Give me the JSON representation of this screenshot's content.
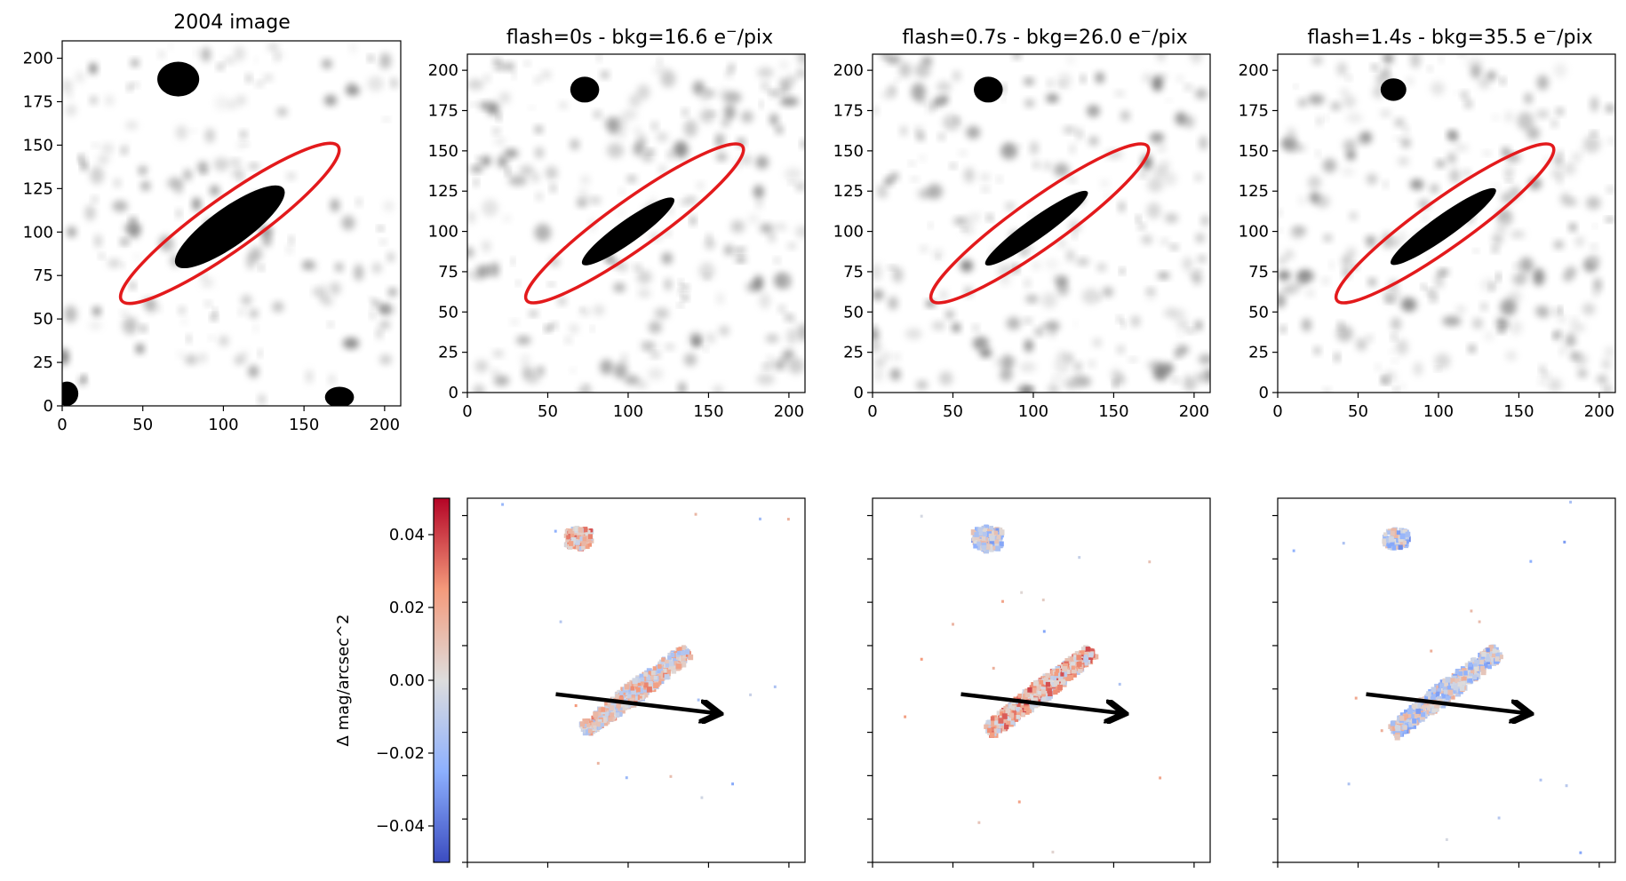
{
  "figure": {
    "accent_ellipse": "#e31a1c",
    "arrow_color": "#000000"
  },
  "chart_data": [
    {
      "type": "heatmap",
      "panel": "top-1",
      "title": "2004 image",
      "colormap": "gray_r",
      "xlim": [
        0,
        210
      ],
      "ylim": [
        0,
        210
      ],
      "xticks": [
        0,
        50,
        100,
        150,
        200
      ],
      "yticks": [
        0,
        25,
        50,
        75,
        100,
        125,
        150,
        175,
        200
      ],
      "xtick_labels": [
        "0",
        "50",
        "100",
        "150",
        "200"
      ],
      "ytick_labels": [
        "0",
        "25",
        "50",
        "75",
        "100",
        "125",
        "150",
        "175",
        "200"
      ],
      "overlay": {
        "shape": "ellipse",
        "center": [
          104,
          105
        ],
        "width": 165,
        "height": 30,
        "angle_deg": 35.5,
        "color": "red"
      },
      "sources": [
        {
          "name": "galaxy",
          "center": [
            104,
            103
          ],
          "length": 82,
          "width": 22,
          "angle_deg": 35.5,
          "level": 1.0
        },
        {
          "name": "star-top",
          "center": [
            72,
            188
          ],
          "length": 26,
          "width": 20,
          "angle_deg": 0,
          "level": 1.0
        },
        {
          "name": "corner-bottom-left",
          "center": [
            3,
            7
          ],
          "length": 14,
          "width": 14,
          "angle_deg": 0,
          "level": 1.0
        },
        {
          "name": "corner-bottom-right",
          "center": [
            172,
            5
          ],
          "length": 18,
          "width": 12,
          "angle_deg": 0,
          "level": 1.0
        }
      ]
    },
    {
      "type": "heatmap",
      "panel": "top-2",
      "title": "flash=0s - bkg=16.6 e$^-$/pix",
      "title_parts": {
        "pre": "flash=0s - bkg=16.6 e",
        "sup": "−",
        "post": "/pix"
      },
      "flash_s": 0,
      "bkg_e_per_pix": 16.6,
      "colormap": "gray_r",
      "xlim": [
        0,
        210
      ],
      "ylim": [
        0,
        210
      ],
      "xticks": [
        0,
        50,
        100,
        150,
        200
      ],
      "yticks": [
        0,
        25,
        50,
        75,
        100,
        125,
        150,
        175,
        200
      ],
      "xtick_labels": [
        "0",
        "50",
        "100",
        "150",
        "200"
      ],
      "ytick_labels": [
        "0",
        "25",
        "50",
        "75",
        "100",
        "125",
        "150",
        "175",
        "200"
      ],
      "overlay": {
        "shape": "ellipse",
        "center": [
          104,
          105
        ],
        "width": 165,
        "height": 30,
        "angle_deg": 35.5,
        "color": "red"
      },
      "sources": [
        {
          "name": "galaxy",
          "center": [
            100,
            100
          ],
          "length": 70,
          "width": 14,
          "angle_deg": 35.5,
          "level": 1.0
        },
        {
          "name": "star-top",
          "center": [
            73,
            188
          ],
          "length": 18,
          "width": 16,
          "angle_deg": 0,
          "level": 1.0
        }
      ]
    },
    {
      "type": "heatmap",
      "panel": "top-3",
      "title": "flash=0.7s - bkg=26.0 e$^-$/pix",
      "title_parts": {
        "pre": "flash=0.7s - bkg=26.0 e",
        "sup": "−",
        "post": "/pix"
      },
      "flash_s": 0.7,
      "bkg_e_per_pix": 26.0,
      "colormap": "gray_r",
      "xlim": [
        0,
        210
      ],
      "ylim": [
        0,
        210
      ],
      "xticks": [
        0,
        50,
        100,
        150,
        200
      ],
      "yticks": [
        0,
        25,
        50,
        75,
        100,
        125,
        150,
        175,
        200
      ],
      "xtick_labels": [
        "0",
        "50",
        "100",
        "150",
        "200"
      ],
      "ytick_labels": [
        "0",
        "25",
        "50",
        "75",
        "100",
        "125",
        "150",
        "175",
        "200"
      ],
      "overlay": {
        "shape": "ellipse",
        "center": [
          104,
          105
        ],
        "width": 165,
        "height": 30,
        "angle_deg": 35.5,
        "color": "red"
      },
      "sources": [
        {
          "name": "galaxy",
          "center": [
            102,
            102
          ],
          "length": 78,
          "width": 13,
          "angle_deg": 35.5,
          "level": 1.0
        },
        {
          "name": "star-top",
          "center": [
            72,
            188
          ],
          "length": 18,
          "width": 16,
          "angle_deg": 0,
          "level": 1.0
        }
      ]
    },
    {
      "type": "heatmap",
      "panel": "top-4",
      "title": "flash=1.4s - bkg=35.5 e$^-$/pix",
      "title_parts": {
        "pre": "flash=1.4s - bkg=35.5 e",
        "sup": "−",
        "post": "/pix"
      },
      "flash_s": 1.4,
      "bkg_e_per_pix": 35.5,
      "colormap": "gray_r",
      "xlim": [
        0,
        210
      ],
      "ylim": [
        0,
        210
      ],
      "xticks": [
        0,
        50,
        100,
        150,
        200
      ],
      "yticks": [
        0,
        25,
        50,
        75,
        100,
        125,
        150,
        175,
        200
      ],
      "xtick_labels": [
        "0",
        "50",
        "100",
        "150",
        "200"
      ],
      "ytick_labels": [
        "0",
        "25",
        "50",
        "75",
        "100",
        "125",
        "150",
        "175",
        "200"
      ],
      "overlay": {
        "shape": "ellipse",
        "center": [
          104,
          105
        ],
        "width": 165,
        "height": 30,
        "angle_deg": 35.5,
        "color": "red"
      },
      "sources": [
        {
          "name": "galaxy",
          "center": [
            103,
            103
          ],
          "length": 80,
          "width": 14,
          "angle_deg": 35.5,
          "level": 1.0
        },
        {
          "name": "star-top",
          "center": [
            72,
            188
          ],
          "length": 16,
          "width": 14,
          "angle_deg": 0,
          "level": 1.0
        }
      ]
    },
    {
      "type": "heatmap",
      "panel": "bottom-2",
      "title": "",
      "colormap": "coolwarm",
      "vmin": -0.05,
      "vmax": 0.05,
      "xlim": [
        0,
        210
      ],
      "ylim": [
        0,
        210
      ],
      "annotation": {
        "type": "arrow",
        "from": [
          55,
          97
        ],
        "to": [
          155,
          86
        ]
      },
      "residual_patches": [
        {
          "name": "galaxy-residual",
          "center": [
            103,
            100
          ],
          "length": 80,
          "width": 12,
          "angle_deg": 35.5,
          "mean": 0.005
        },
        {
          "name": "star-residual",
          "center": [
            68,
            188
          ],
          "length": 16,
          "width": 13,
          "angle_deg": 0,
          "mean": 0.012
        }
      ]
    },
    {
      "type": "heatmap",
      "panel": "bottom-3",
      "title": "",
      "colormap": "coolwarm",
      "vmin": -0.05,
      "vmax": 0.05,
      "xlim": [
        0,
        210
      ],
      "ylim": [
        0,
        210
      ],
      "annotation": {
        "type": "arrow",
        "from": [
          55,
          97
        ],
        "to": [
          155,
          86
        ]
      },
      "residual_patches": [
        {
          "name": "galaxy-residual",
          "center": [
            103,
            100
          ],
          "length": 80,
          "width": 12,
          "angle_deg": 35.5,
          "mean": 0.014
        },
        {
          "name": "star-residual",
          "center": [
            70,
            188
          ],
          "length": 18,
          "width": 14,
          "angle_deg": 0,
          "mean": -0.008
        }
      ]
    },
    {
      "type": "heatmap",
      "panel": "bottom-4",
      "title": "",
      "colormap": "coolwarm",
      "vmin": -0.05,
      "vmax": 0.05,
      "xlim": [
        0,
        210
      ],
      "ylim": [
        0,
        210
      ],
      "annotation": {
        "type": "arrow",
        "from": [
          55,
          97
        ],
        "to": [
          155,
          86
        ]
      },
      "residual_patches": [
        {
          "name": "galaxy-residual",
          "center": [
            103,
            100
          ],
          "length": 80,
          "width": 12,
          "angle_deg": 35.5,
          "mean": -0.006
        },
        {
          "name": "star-residual",
          "center": [
            72,
            188
          ],
          "length": 15,
          "width": 12,
          "angle_deg": 0,
          "mean": -0.01
        }
      ]
    },
    {
      "type": "colorbar",
      "panel": "bottom-colorbar",
      "colormap": "coolwarm",
      "label": "Δ mag/arcsec^2",
      "vmin": -0.05,
      "vmax": 0.05,
      "ticks": [
        0.04,
        0.02,
        0.0,
        -0.02,
        -0.04
      ],
      "tick_labels": [
        "0.04",
        "0.02",
        "0.00",
        "−0.02",
        "−0.04"
      ]
    }
  ]
}
